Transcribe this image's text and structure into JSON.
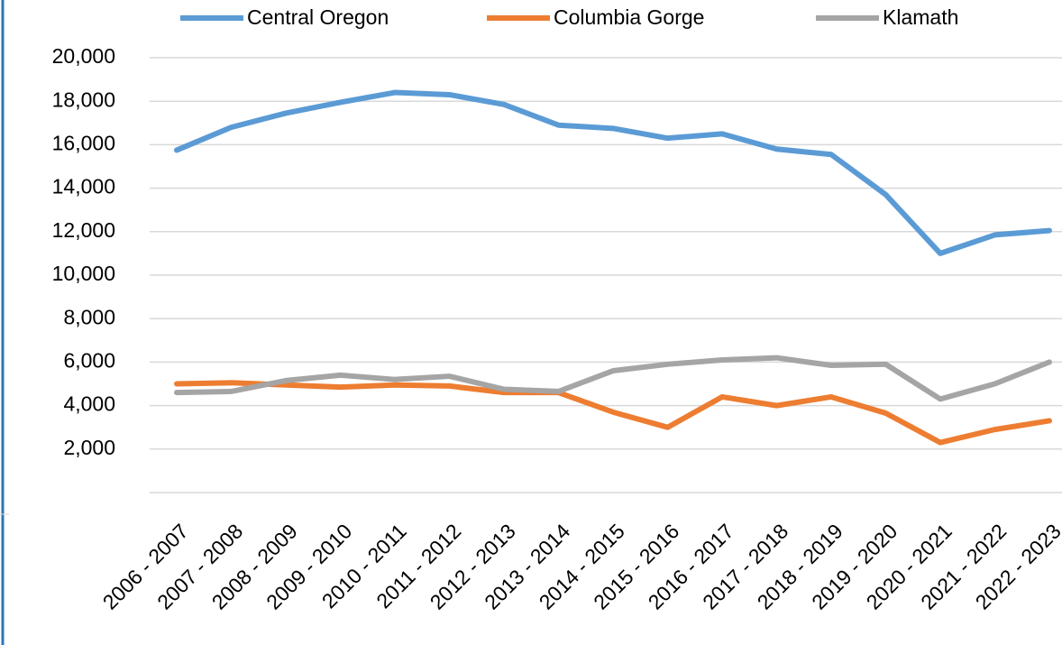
{
  "chart_data": {
    "type": "line",
    "categories": [
      "2006 - 2007",
      "2007 - 2008",
      "2008 - 2009",
      "2009 - 2010",
      "2010 - 2011",
      "2011 - 2012",
      "2012 - 2013",
      "2013 - 2014",
      "2014 - 2015",
      "2015 - 2016",
      "2016 - 2017",
      "2017 - 2018",
      "2018 - 2019",
      "2019 - 2020",
      "2020 - 2021",
      "2021 - 2022",
      "2022 - 2023"
    ],
    "series": [
      {
        "name": "Central Oregon",
        "color": "#5b9bd5",
        "values": [
          15750,
          16800,
          17450,
          17950,
          18400,
          18300,
          17850,
          16900,
          16750,
          16300,
          16500,
          15800,
          15550,
          13700,
          11000,
          11850,
          12050
        ]
      },
      {
        "name": "Columbia Gorge",
        "color": "#ed7d31",
        "values": [
          5000,
          5050,
          4950,
          4850,
          4950,
          4900,
          4600,
          4600,
          3700,
          3000,
          4400,
          4000,
          4400,
          3650,
          2300,
          2900,
          3300
        ]
      },
      {
        "name": "Klamath",
        "color": "#a5a5a5",
        "values": [
          4600,
          4650,
          5150,
          5400,
          5200,
          5350,
          4750,
          4650,
          5600,
          5900,
          6100,
          6200,
          5850,
          5900,
          4300,
          5000,
          6000
        ]
      }
    ],
    "ylim": [
      0,
      20000
    ],
    "yticks": [
      {
        "value": 2000,
        "label": "2,000"
      },
      {
        "value": 4000,
        "label": "4,000"
      },
      {
        "value": 6000,
        "label": "6,000"
      },
      {
        "value": 8000,
        "label": "8,000"
      },
      {
        "value": 10000,
        "label": "10,000"
      },
      {
        "value": 12000,
        "label": "12,000"
      },
      {
        "value": 14000,
        "label": "14,000"
      },
      {
        "value": 16000,
        "label": "16,000"
      },
      {
        "value": 18000,
        "label": "18,000"
      },
      {
        "value": 20000,
        "label": "20,000"
      }
    ],
    "grid": true,
    "legend": "top"
  }
}
